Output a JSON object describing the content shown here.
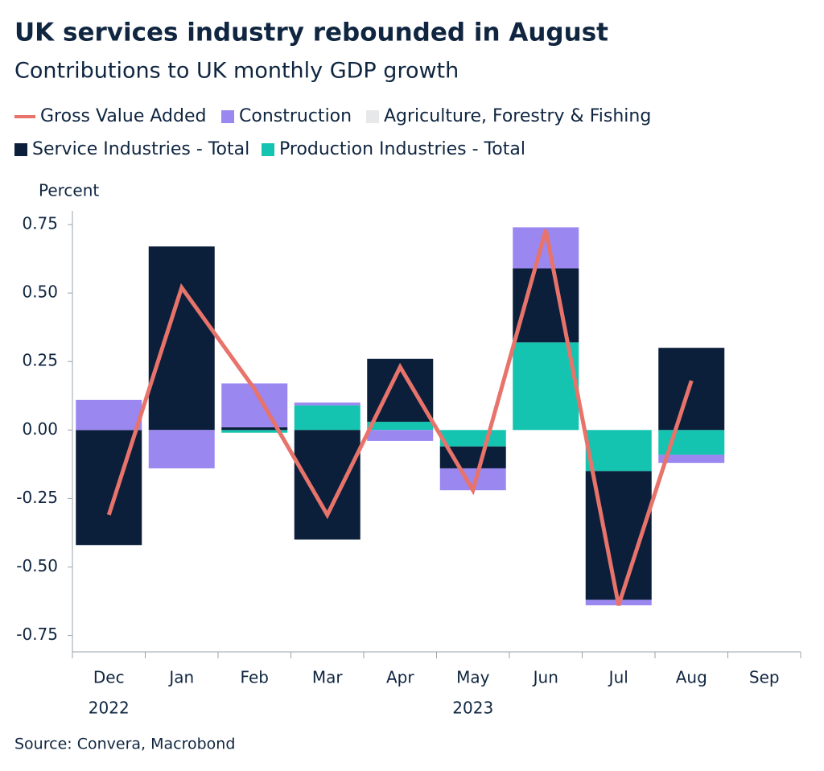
{
  "chart_data": {
    "type": "stacked-bar-line",
    "title": "UK services industry rebounded in August",
    "subtitle": "Contributions to UK monthly GDP growth",
    "y_axis_label": "Percent",
    "source": "Source: Convera, Macrobond",
    "categories": [
      "Dec",
      "Jan",
      "Feb",
      "Mar",
      "Apr",
      "May",
      "Jun",
      "Jul",
      "Aug",
      "Sep"
    ],
    "year_labels": [
      "2022",
      null,
      null,
      null,
      null,
      "2023",
      null,
      null,
      null,
      null
    ],
    "series": [
      {
        "name": "Gross Value Added",
        "type": "line",
        "color": "#e8736a",
        "values": [
          -0.31,
          0.52,
          0.15,
          -0.31,
          0.23,
          -0.22,
          0.73,
          -0.64,
          0.18,
          null
        ]
      },
      {
        "name": "Construction",
        "type": "bar",
        "color": "#9b87f0",
        "values": [
          0.11,
          -0.14,
          0.16,
          0.01,
          -0.04,
          -0.08,
          0.15,
          -0.02,
          -0.03,
          null
        ]
      },
      {
        "name": "Agriculture, Forestry & Fishing",
        "type": "bar",
        "color": "#e6e8ea",
        "values": [
          0,
          0,
          0,
          0,
          0,
          0,
          0,
          0,
          0,
          null
        ]
      },
      {
        "name": "Service Industries - Total",
        "type": "bar",
        "color": "#0b1f3a",
        "values": [
          -0.42,
          0.67,
          0.01,
          -0.4,
          0.23,
          -0.08,
          0.27,
          -0.47,
          0.3,
          null
        ]
      },
      {
        "name": "Production Industries - Total",
        "type": "bar",
        "color": "#14c3b0",
        "values": [
          0,
          0,
          -0.01,
          0.09,
          0.03,
          -0.06,
          0.32,
          -0.15,
          -0.09,
          null
        ]
      }
    ],
    "ylim": [
      -0.81,
      0.8
    ],
    "yticks": [
      0.75,
      {
        "value": 0.5,
        "label": "0.50"
      },
      0.25,
      {
        "value": 0,
        "label": "0.00"
      },
      -0.25,
      {
        "value": -0.5,
        "label": "-0.50"
      },
      -0.75
    ],
    "grid": false
  }
}
